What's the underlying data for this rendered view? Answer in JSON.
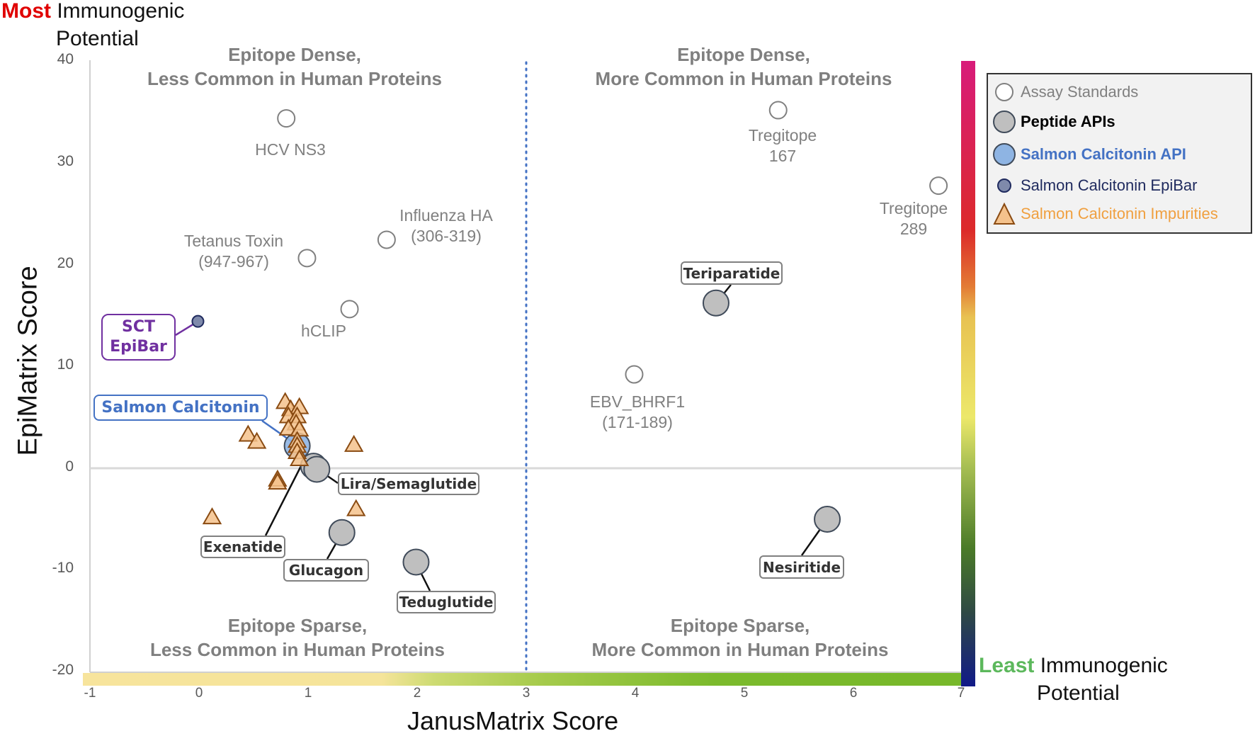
{
  "titles": {
    "top_left_most": "Most",
    "top_left_rest": "Immunogenic",
    "top_left_line2": "Potential",
    "bottom_right_least": "Least",
    "bottom_right_rest": "Immunogenic",
    "bottom_right_line2": "Potential"
  },
  "colors": {
    "most": "#e00000",
    "least": "#5cb85c",
    "assay_standard_stroke": "#808080",
    "peptide_api_fill": "#bfbfbf",
    "peptide_api_stroke": "#404b5a",
    "sc_api_fill": "#8eb4e3",
    "sc_api_stroke": "#404b5a",
    "epibar_fill": "#7f8aab",
    "epibar_stroke": "#1f2a5e",
    "impurity_fill": "#f4c28c",
    "impurity_stroke": "#8a4b12",
    "divider": "#4472c4"
  },
  "quadrants": {
    "top_left": [
      "Epitope Dense,",
      "Less Common in Human Proteins"
    ],
    "top_right": [
      "Epitope Dense,",
      "More Common in Human Proteins"
    ],
    "bottom_left": [
      "Epitope Sparse,",
      "Less Common in Human Proteins"
    ],
    "bottom_right": [
      "Epitope Sparse,",
      "More Common in Human Proteins"
    ]
  },
  "legend": {
    "items": [
      {
        "label": "Assay Standards",
        "color": "#808080",
        "bold": false
      },
      {
        "label": "Peptide APIs",
        "color": "#000000",
        "bold": true
      },
      {
        "label": "Salmon Calcitonin API",
        "color": "#4472c4",
        "bold": true
      },
      {
        "label": "Salmon Calcitonin EpiBar",
        "color": "#1f2a5e",
        "bold": false
      },
      {
        "label": "Salmon Calcitonin Impurities",
        "color": "#f0a040",
        "bold": false
      }
    ]
  },
  "chart_data": {
    "type": "scatter",
    "title": "",
    "xlabel": "JanusMatrix Score",
    "ylabel": "EpiMatrix Score",
    "xlim": [
      -1,
      7
    ],
    "ylim": [
      -20,
      40
    ],
    "xticks": [
      -1,
      0,
      1,
      2,
      3,
      4,
      5,
      6,
      7
    ],
    "yticks": [
      40,
      30,
      20,
      10,
      0,
      -10,
      -20
    ],
    "grid": false,
    "reference_lines": {
      "vertical_dotted_x": 3,
      "horizontal_y": 0
    },
    "legend_position": "right",
    "side_scales": {
      "vertical": "Most Immunogenic Potential (top) to Least Immunogenic Potential (bottom)",
      "horizontal": "JanusMatrix gradient (yellow to green)"
    },
    "series": [
      {
        "name": "Assay Standards",
        "marker": "open-circle",
        "points": [
          {
            "label": "HCV NS3",
            "x": 0.8,
            "y": 34.3
          },
          {
            "label": "Tetanus Toxin (947-967)",
            "x": 0.99,
            "y": 20.6
          },
          {
            "label": "Influenza HA (306-319)",
            "x": 1.72,
            "y": 22.4
          },
          {
            "label": "hCLIP",
            "x": 1.38,
            "y": 15.6
          },
          {
            "label": "Tregitope 167",
            "x": 5.31,
            "y": 35.1
          },
          {
            "label": "Tregitope 289",
            "x": 6.78,
            "y": 27.7
          },
          {
            "label": "EBV_BHRF1 (171-189)",
            "x": 3.99,
            "y": 9.2
          }
        ]
      },
      {
        "name": "Peptide APIs",
        "marker": "gray-circle",
        "points": [
          {
            "label": "Teriparatide",
            "x": 4.74,
            "y": 16.2
          },
          {
            "label": "Nesiritide",
            "x": 5.76,
            "y": -5.0
          },
          {
            "label": "Lira/Semaglutide",
            "x": 1.05,
            "y": 0.2
          },
          {
            "label": "Lira/Semaglutide",
            "x": 1.08,
            "y": -0.1
          },
          {
            "label": "Exenatide",
            "x": 1.0,
            "y": 0.5
          },
          {
            "label": "Glucagon",
            "x": 1.31,
            "y": -6.3
          },
          {
            "label": "Teduglutide",
            "x": 1.99,
            "y": -9.2
          }
        ]
      },
      {
        "name": "Salmon Calcitonin API",
        "marker": "blue-circle",
        "points": [
          {
            "label": "Salmon Calcitonin",
            "x": 0.9,
            "y": 2.2
          }
        ]
      },
      {
        "name": "Salmon Calcitonin EpiBar",
        "marker": "small-navy-circle",
        "points": [
          {
            "label": "SCT EpiBar",
            "x": -0.01,
            "y": 14.4
          }
        ]
      },
      {
        "name": "Salmon Calcitonin Impurities",
        "marker": "triangle",
        "points": [
          {
            "x": 0.79,
            "y": 6.5
          },
          {
            "x": 0.84,
            "y": 5.8
          },
          {
            "x": 0.92,
            "y": 6.0
          },
          {
            "x": 0.82,
            "y": 5.1
          },
          {
            "x": 0.9,
            "y": 5.1
          },
          {
            "x": 0.89,
            "y": 4.4
          },
          {
            "x": 0.82,
            "y": 3.9
          },
          {
            "x": 0.92,
            "y": 3.8
          },
          {
            "x": 0.9,
            "y": 2.7
          },
          {
            "x": 0.9,
            "y": 2.2
          },
          {
            "x": 0.9,
            "y": 1.6
          },
          {
            "x": 0.92,
            "y": 0.9
          },
          {
            "x": 0.45,
            "y": 3.3
          },
          {
            "x": 0.53,
            "y": 2.6
          },
          {
            "x": 1.42,
            "y": 2.3
          },
          {
            "x": 0.72,
            "y": -1.1
          },
          {
            "x": 0.72,
            "y": -1.4
          },
          {
            "x": 1.44,
            "y": -4.0
          },
          {
            "x": 0.12,
            "y": -4.8
          }
        ]
      }
    ]
  },
  "labels": {
    "hcv": "HCV NS3",
    "tetanus_1": "Tetanus  Toxin",
    "tetanus_2": "(947-967)",
    "influenza_1": "Influenza HA",
    "influenza_2": "(306-319)",
    "hclip": "hCLIP",
    "treg167_1": "Tregitope",
    "treg167_2": "167",
    "treg289_1": "Tregitope",
    "treg289_2": "289",
    "ebv_1": "EBV_BHRF1",
    "ebv_2": "(171-189)",
    "teriparatide": "Teriparatide",
    "nesiritide": "Nesiritide",
    "lira": "Lira/Semaglutide",
    "exenatide": "Exenatide",
    "glucagon": "Glucagon",
    "teduglutide": "Teduglutide",
    "salmon_calcitonin": "Salmon Calcitonin",
    "sct_1": "SCT",
    "sct_2": "EpiBar"
  }
}
